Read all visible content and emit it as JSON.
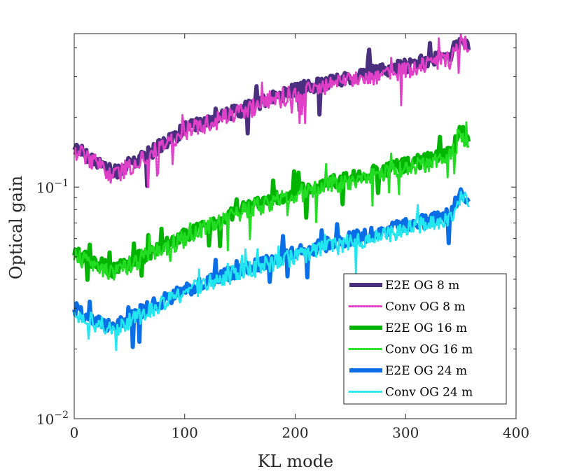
{
  "chart_data": {
    "type": "line",
    "title": "",
    "xlabel": "KL mode",
    "ylabel": "Optical gain",
    "xscale": "linear",
    "yscale": "log",
    "xlim": [
      0,
      400
    ],
    "ylim": [
      0.01,
      0.46
    ],
    "x_ticks": [
      0,
      100,
      200,
      300,
      400
    ],
    "x_tick_labels": [
      "0",
      "100",
      "200",
      "300",
      "400"
    ],
    "y_ticks": [
      0.01,
      0.1
    ],
    "y_tick_labels": [
      {
        "base": "10",
        "exp": "−2"
      },
      {
        "base": "10",
        "exp": "−1"
      }
    ],
    "grid": false,
    "legend_position": "bottom-right",
    "x_max_mode": 357,
    "series": [
      {
        "name": "E2E OG 8 m",
        "style": "solid",
        "color": "#4b2f7f",
        "anchors_x": [
          0,
          10,
          35,
          60,
          100,
          150,
          200,
          250,
          300,
          340,
          350,
          357
        ],
        "anchors_y": [
          0.15,
          0.14,
          0.115,
          0.133,
          0.178,
          0.215,
          0.263,
          0.3,
          0.335,
          0.37,
          0.44,
          0.4
        ]
      },
      {
        "name": "Conv OG 8 m",
        "style": "dotted",
        "color": "#e040c8",
        "anchors_x": [
          0,
          10,
          35,
          60,
          100,
          150,
          200,
          250,
          300,
          340,
          350,
          357
        ],
        "anchors_y": [
          0.145,
          0.137,
          0.112,
          0.13,
          0.175,
          0.21,
          0.255,
          0.292,
          0.32,
          0.355,
          0.42,
          0.39
        ]
      },
      {
        "name": "E2E OG 16 m",
        "style": "solid",
        "color": "#00b400",
        "anchors_x": [
          0,
          10,
          35,
          60,
          100,
          150,
          200,
          250,
          300,
          340,
          350,
          357
        ],
        "anchors_y": [
          0.052,
          0.05,
          0.044,
          0.05,
          0.062,
          0.08,
          0.096,
          0.11,
          0.125,
          0.14,
          0.175,
          0.16
        ]
      },
      {
        "name": "Conv OG 16 m",
        "style": "dotted",
        "color": "#22dd22",
        "anchors_x": [
          0,
          10,
          35,
          60,
          100,
          150,
          200,
          250,
          300,
          340,
          350,
          357
        ],
        "anchors_y": [
          0.05,
          0.048,
          0.043,
          0.049,
          0.06,
          0.078,
          0.093,
          0.106,
          0.12,
          0.135,
          0.165,
          0.155
        ]
      },
      {
        "name": "E2E OG 24 m",
        "style": "solid",
        "color": "#0a6ee6",
        "anchors_x": [
          0,
          10,
          35,
          60,
          100,
          150,
          200,
          250,
          300,
          340,
          350,
          357
        ],
        "anchors_y": [
          0.03,
          0.028,
          0.025,
          0.029,
          0.036,
          0.044,
          0.052,
          0.06,
          0.068,
          0.076,
          0.095,
          0.088
        ]
      },
      {
        "name": "Conv OG 24 m",
        "style": "dotted",
        "color": "#22e6f0",
        "anchors_x": [
          0,
          10,
          35,
          60,
          100,
          150,
          200,
          250,
          300,
          340,
          350,
          357
        ],
        "anchors_y": [
          0.029,
          0.027,
          0.024,
          0.028,
          0.035,
          0.043,
          0.05,
          0.058,
          0.066,
          0.073,
          0.09,
          0.085
        ]
      }
    ]
  }
}
